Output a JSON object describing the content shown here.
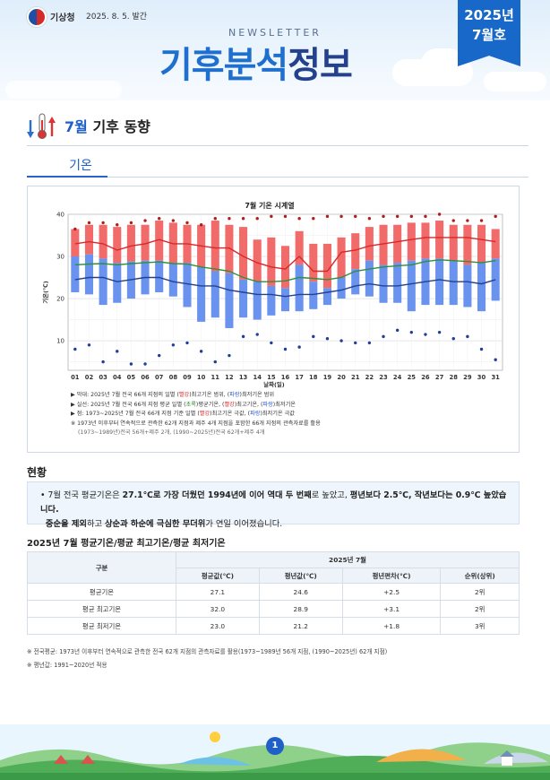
{
  "header": {
    "agency": "기상청",
    "issue_date": "2025. 8. 5. 발간",
    "newsletter_word": "NEWSLETTER",
    "title_part1": "기후분석",
    "title_part2": "정보",
    "issue_year": "2025년",
    "issue_month": "7월호",
    "colors": {
      "primary": "#1f6fcf",
      "dark": "#23418c"
    },
    "icons": [
      "kma-logo-icon",
      "cloud-icon"
    ]
  },
  "section": {
    "month": "7월",
    "title": "기후 동향",
    "tab": "기온",
    "icon": "thermometer-icon"
  },
  "chart_data": {
    "type": "bar",
    "title": "7월 기온 시계열",
    "xlabel": "날짜(일)",
    "ylabel": "기온(℃)",
    "ylim": [
      3,
      40
    ],
    "yticks": [
      10,
      20,
      30,
      40
    ],
    "grid": true,
    "categories": [
      "01",
      "02",
      "03",
      "04",
      "05",
      "06",
      "07",
      "08",
      "09",
      "10",
      "11",
      "12",
      "13",
      "14",
      "15",
      "16",
      "17",
      "18",
      "19",
      "20",
      "21",
      "22",
      "23",
      "24",
      "25",
      "26",
      "27",
      "28",
      "29",
      "30",
      "31"
    ],
    "series": [
      {
        "name": "2025년 7월 일별 최고기온 범위",
        "kind": "range-bar",
        "color": "#f26b6b",
        "low": [
          30.0,
          30.5,
          29.5,
          28.5,
          28.8,
          29.0,
          29.0,
          28.5,
          28.5,
          27.5,
          26.5,
          26.0,
          24.5,
          24.0,
          23.0,
          22.5,
          28.0,
          24.0,
          22.5,
          25.0,
          27.0,
          29.0,
          28.0,
          28.5,
          29.0,
          29.5,
          29.5,
          29.0,
          28.0,
          28.5,
          29.5
        ],
        "high": [
          36.5,
          37.5,
          37.5,
          37.0,
          37.5,
          37.5,
          38.5,
          38.0,
          37.5,
          37.5,
          38.5,
          37.5,
          37.0,
          34.0,
          34.5,
          32.5,
          36.0,
          33.0,
          33.0,
          34.5,
          35.5,
          37.0,
          37.5,
          37.5,
          38.0,
          38.0,
          38.5,
          37.5,
          37.5,
          37.5,
          36.5
        ]
      },
      {
        "name": "2025년 7월 일별 최저기온 범위",
        "kind": "range-bar",
        "color": "#6a93ef",
        "low": [
          21.5,
          21.0,
          18.5,
          19.0,
          20.0,
          21.0,
          21.5,
          20.5,
          18.0,
          14.5,
          15.5,
          13.0,
          15.5,
          15.0,
          16.0,
          17.0,
          17.0,
          17.5,
          18.5,
          20.0,
          21.0,
          20.5,
          19.0,
          19.0,
          17.0,
          18.5,
          18.5,
          18.5,
          18.0,
          17.0,
          19.5
        ],
        "high": [
          30.0,
          30.5,
          29.5,
          28.5,
          28.8,
          29.0,
          29.0,
          28.5,
          28.5,
          27.5,
          26.5,
          26.0,
          24.5,
          24.0,
          23.0,
          22.5,
          28.0,
          24.0,
          22.5,
          25.0,
          27.0,
          29.0,
          28.0,
          28.5,
          29.0,
          29.5,
          29.5,
          29.0,
          28.0,
          28.5,
          29.5
        ]
      },
      {
        "name": "2025년 7월 전국 평균 일별 평균기온",
        "kind": "line",
        "color": "#2f8f3a",
        "values": [
          28.0,
          28.2,
          28.3,
          28.0,
          28.3,
          28.5,
          28.7,
          28.3,
          28.2,
          27.5,
          27.0,
          26.5,
          25.0,
          24.0,
          24.0,
          24.2,
          25.0,
          24.8,
          24.5,
          25.0,
          26.5,
          27.0,
          27.5,
          27.8,
          28.0,
          28.8,
          29.2,
          29.0,
          28.8,
          28.5,
          29.0
        ]
      },
      {
        "name": "2025년 7월 전국 평균 일별 최고기온",
        "kind": "line",
        "color": "#d42a2a",
        "values": [
          33.0,
          33.5,
          33.0,
          31.5,
          32.5,
          33.0,
          34.0,
          33.0,
          33.0,
          32.5,
          32.0,
          32.0,
          30.0,
          28.5,
          27.5,
          27.0,
          30.0,
          26.5,
          26.5,
          31.0,
          31.5,
          32.5,
          33.0,
          33.5,
          34.0,
          34.5,
          34.5,
          34.5,
          34.5,
          34.0,
          33.5
        ]
      },
      {
        "name": "2025년 7월 전국 평균 일별 최저기온",
        "kind": "line",
        "color": "#23418c",
        "values": [
          24.5,
          25.0,
          25.0,
          24.0,
          24.5,
          25.0,
          25.0,
          24.0,
          23.5,
          23.0,
          23.0,
          22.0,
          21.5,
          21.0,
          21.0,
          20.5,
          21.0,
          21.0,
          21.5,
          22.0,
          23.0,
          23.5,
          23.0,
          23.0,
          23.5,
          24.0,
          24.5,
          24.0,
          24.0,
          23.5,
          24.5
        ]
      },
      {
        "name": "1973~2025년 7월 일별 최고기온 극값",
        "kind": "points",
        "color": "#b01e1e",
        "values": [
          36.5,
          38.0,
          38.0,
          37.5,
          38.0,
          38.5,
          39.0,
          38.5,
          38.0,
          37.5,
          39.0,
          39.0,
          39.0,
          39.0,
          39.5,
          39.5,
          39.0,
          39.0,
          39.5,
          39.5,
          39.5,
          39.0,
          39.5,
          39.5,
          39.5,
          39.5,
          40.0,
          38.5,
          38.5,
          38.5,
          39.5
        ]
      },
      {
        "name": "1973~2025년 7월 일별 최저기온 극값",
        "kind": "points",
        "color": "#1f3f99",
        "values": [
          8.0,
          9.0,
          5.0,
          7.5,
          4.5,
          4.5,
          6.5,
          9.0,
          9.5,
          7.5,
          5.0,
          6.5,
          11.0,
          11.5,
          9.5,
          8.0,
          8.5,
          11.0,
          10.5,
          10.0,
          9.5,
          9.5,
          11.0,
          12.5,
          12.0,
          11.5,
          12.0,
          10.5,
          11.0,
          8.0,
          5.5
        ]
      }
    ]
  },
  "legend_notes": {
    "n1_a": "▶ 막대: 2025년 7월 전국 66개 지점의 일별 (",
    "n1_red": "빨강",
    "n1_b": ")최고기온 범위, (",
    "n1_blue": "파랑",
    "n1_c": ")최저기온 범위",
    "n2_a": "▶ 실선: 2025년 7월 전국 66개 지점 평균 일별 (",
    "n2_green": "초록",
    "n2_b": ")평균기온, (",
    "n2_red": "빨강",
    "n2_c": ")최고기온, (",
    "n2_blue": "파랑",
    "n2_d": ")최저기온",
    "n3_a": "▶ 점: 1973~2025년 7월 전국 66개 지점 기준 일별 (",
    "n3_red": "빨강",
    "n3_b": ")최고기온 극값, (",
    "n3_blue": "파랑",
    "n3_c": ")최저기온 극값",
    "n4": "※ 1973년 이후부터 연속적으로 관측한 62개 지점과 제주 4개 지점을 포함한 66개 지점의 관측자료를 활용",
    "n5": "(1973~1989년)전국 56개+제주 2개, (1990~2025년)전국 62개+제주 4개"
  },
  "status": {
    "heading": "현황",
    "p1": "• 7월 전국 평균기온은 ",
    "b1": "27.1℃로 가장 더웠던 1994년에 이어 역대 두 번째",
    "p2": "로 높았고, ",
    "b2": "평년보다 2.5℃, 작년보다는 0.9℃ 높았습니다.",
    "p3": "중순을 제외",
    "p4": "하고 ",
    "b3": "상순과 하순에 극심한 무더위",
    "p5": "가 연일 이어졌습니다."
  },
  "table": {
    "title": "2025년 7월 평균기온/평균 최고기온/평균 최저기온",
    "col_category": "구분",
    "col_group": "2025년 7월",
    "headers": [
      "평균값(℃)",
      "평년값(℃)",
      "평년편차(℃)",
      "순위(상위)"
    ],
    "rows": [
      {
        "label": "평균기온",
        "mean": "27.1",
        "normal": "24.6",
        "anomaly": "+2.5",
        "rank": "2위"
      },
      {
        "label": "평균 최고기온",
        "mean": "32.0",
        "normal": "28.9",
        "anomaly": "+3.1",
        "rank": "2위"
      },
      {
        "label": "평균 최저기온",
        "mean": "23.0",
        "normal": "21.2",
        "anomaly": "+1.8",
        "rank": "3위"
      }
    ]
  },
  "footnotes": {
    "f1": "※ 전국평균: 1973년 이후부터 연속적으로 관측한 전국 62개 지점의 관측자료를 활용(1973~1989년 56개 지점, (1990~2025년) 62개 지점)",
    "f2": "※ 평년값: 1991~2020년 적용"
  },
  "footer": {
    "page_number": "1"
  }
}
